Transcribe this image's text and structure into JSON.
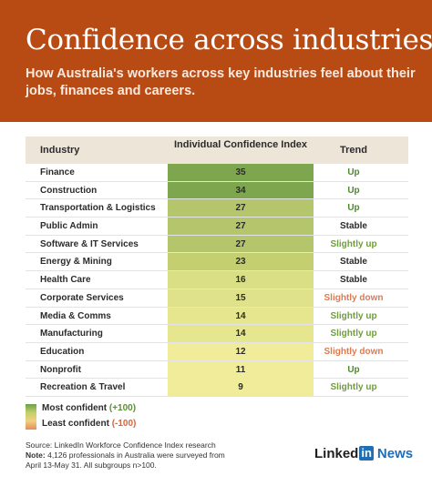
{
  "header": {
    "title": "Confidence across industries",
    "subtitle": "How Australia's workers across key industries feel about their jobs, finances and careers."
  },
  "table": {
    "headers": {
      "industry": "Industry",
      "index": "Individual Confidence Index",
      "trend": "Trend"
    }
  },
  "chart_data": {
    "type": "table",
    "columns": [
      "Industry",
      "Individual Confidence Index",
      "Trend"
    ],
    "rows": [
      {
        "industry": "Finance",
        "value": 35,
        "trend": "Up"
      },
      {
        "industry": "Construction",
        "value": 34,
        "trend": "Up"
      },
      {
        "industry": "Transportation & Logistics",
        "value": 27,
        "trend": "Up"
      },
      {
        "industry": "Public Admin",
        "value": 27,
        "trend": "Stable"
      },
      {
        "industry": "Software & IT Services",
        "value": 27,
        "trend": "Slightly up"
      },
      {
        "industry": "Energy & Mining",
        "value": 23,
        "trend": "Stable"
      },
      {
        "industry": "Health Care",
        "value": 16,
        "trend": "Stable"
      },
      {
        "industry": "Corporate Services",
        "value": 15,
        "trend": "Slightly down"
      },
      {
        "industry": "Media & Comms",
        "value": 14,
        "trend": "Slightly up"
      },
      {
        "industry": "Manufacturing",
        "value": 14,
        "trend": "Slightly up"
      },
      {
        "industry": "Education",
        "value": 12,
        "trend": "Slightly down"
      },
      {
        "industry": "Nonprofit",
        "value": 11,
        "trend": "Up"
      },
      {
        "industry": "Recreation & Travel",
        "value": 9,
        "trend": "Slightly up"
      }
    ],
    "trend_colors": {
      "Up": "#4e8a2e",
      "Stable": "#2b2b2b",
      "Slightly up": "#6f9e3c",
      "Slightly down": "#e07a4e"
    },
    "value_colors": {
      "35": "#7ea64f",
      "34": "#7ea64f",
      "27": "#b4c56b",
      "23": "#c4cf72",
      "16": "#d9df85",
      "15": "#dfe28a",
      "14": "#e5e68d",
      "12": "#f1ec9a",
      "11": "#f1ec9a",
      "9": "#f1ec9a"
    }
  },
  "legend": {
    "most_label": "Most confident",
    "most_value": "(+100)",
    "least_label": "Least confident",
    "least_value": "(-100)"
  },
  "footer": {
    "source": "Source: LinkedIn Workforce Confidence Index research",
    "note_label": "Note:",
    "note_text": " 4,126 professionals in Australia were surveyed from April 13-May 31. All subgroups n>100."
  },
  "brand": {
    "linked": "Linked",
    "in": "in",
    "news": "News"
  }
}
